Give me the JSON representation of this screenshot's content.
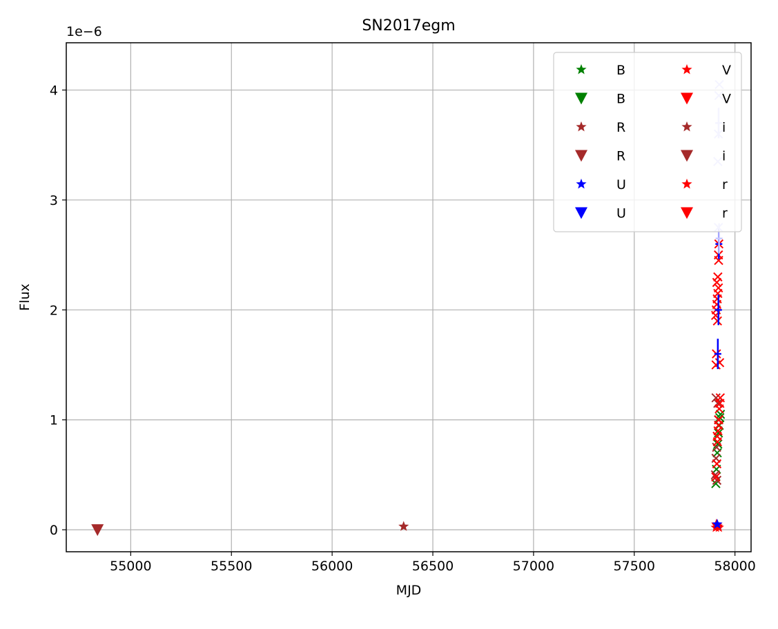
{
  "chart_data": {
    "type": "scatter",
    "title": "SN2017egm",
    "xlabel": "MJD",
    "ylabel": "Flux",
    "y_multiplier_label": "1e−6",
    "xlim": [
      54680,
      58080
    ],
    "ylim": [
      -0.2,
      4.43
    ],
    "x_ticks": [
      55000,
      55500,
      56000,
      56500,
      57000,
      57500,
      58000
    ],
    "y_ticks": [
      0,
      1,
      2,
      3,
      4
    ],
    "y_units": "1e-6",
    "grid": true,
    "legend_placement": "upper right",
    "legend": [
      {
        "label": "B",
        "marker": "star",
        "color": "#008000"
      },
      {
        "label": "B",
        "marker": "triangle_down",
        "color": "#008000"
      },
      {
        "label": "R",
        "marker": "star",
        "color": "#a52a2a"
      },
      {
        "label": "R",
        "marker": "triangle_down",
        "color": "#a52a2a"
      },
      {
        "label": "U",
        "marker": "star",
        "color": "#0000ff"
      },
      {
        "label": "U",
        "marker": "triangle_down",
        "color": "#0000ff"
      },
      {
        "label": "V",
        "marker": "star",
        "color": "#ff0000"
      },
      {
        "label": "V",
        "marker": "triangle_down",
        "color": "#ff0000"
      },
      {
        "label": "i",
        "marker": "star",
        "color": "#a52a2a"
      },
      {
        "label": "i",
        "marker": "triangle_down",
        "color": "#a52a2a"
      },
      {
        "label": "r",
        "marker": "star",
        "color": "#ff0000"
      },
      {
        "label": "r",
        "marker": "triangle_down",
        "color": "#ff0000"
      }
    ],
    "series": [
      {
        "marker": "triangle_down",
        "color": "#a52a2a",
        "points": [
          [
            54835,
            0.0
          ]
        ]
      },
      {
        "marker": "star",
        "color": "#a52a2a",
        "points": [
          [
            56355,
            0.03
          ]
        ]
      },
      {
        "marker": "star",
        "color": "#ff0000",
        "points": [
          [
            57905,
            0.02
          ],
          [
            57910,
            0.04
          ],
          [
            57915,
            0.03
          ],
          [
            57920,
            0.02
          ],
          [
            57908,
            0.05
          ]
        ]
      },
      {
        "marker": "star",
        "color": "#0000ff",
        "points": [
          [
            57912,
            0.05
          ]
        ]
      },
      {
        "marker": "x",
        "color": "#008000",
        "points": [
          [
            57905,
            0.42
          ],
          [
            57908,
            0.55
          ],
          [
            57912,
            0.7
          ],
          [
            57915,
            0.78
          ],
          [
            57918,
            0.88
          ],
          [
            57922,
            0.95
          ],
          [
            57925,
            1.02
          ],
          [
            57928,
            1.05
          ]
        ]
      },
      {
        "marker": "x",
        "color": "#a52a2a",
        "points": [
          [
            57903,
            0.5
          ],
          [
            57906,
            0.65
          ],
          [
            57909,
            0.75
          ],
          [
            57912,
            0.85
          ],
          [
            57906,
            1.2
          ],
          [
            57915,
            1.15
          ],
          [
            57918,
            1.0
          ],
          [
            57910,
            0.45
          ]
        ]
      },
      {
        "marker": "x",
        "color": "#ff0000",
        "points": [
          [
            57905,
            0.48
          ],
          [
            57910,
            0.6
          ],
          [
            57913,
            0.8
          ],
          [
            57916,
            0.9
          ],
          [
            57918,
            0.95
          ],
          [
            57920,
            1.0
          ],
          [
            57922,
            1.1
          ],
          [
            57925,
            1.15
          ],
          [
            57927,
            1.2
          ],
          [
            57912,
            0.85
          ],
          [
            57906,
            1.5
          ],
          [
            57908,
            1.6
          ],
          [
            57924,
            1.52
          ],
          [
            57904,
            1.95
          ],
          [
            57907,
            2.0
          ],
          [
            57910,
            2.05
          ],
          [
            57912,
            2.1
          ],
          [
            57915,
            2.15
          ],
          [
            57918,
            2.2
          ],
          [
            57910,
            2.25
          ],
          [
            57915,
            2.3
          ],
          [
            57918,
            2.5
          ],
          [
            57920,
            2.6
          ],
          [
            57913,
            1.9
          ],
          [
            57919,
            2.45
          ]
        ]
      },
      {
        "marker": "vline",
        "color": "#0000ff",
        "points": [
          [
            57915,
            1.6
          ],
          [
            57918,
            2.0
          ],
          [
            57920,
            2.6
          ]
        ]
      },
      {
        "marker": "x",
        "color": "#c8c8ff",
        "points": [
          [
            57915,
            3.35
          ],
          [
            57918,
            3.6
          ],
          [
            57920,
            3.95
          ],
          [
            57922,
            4.05
          ],
          [
            57918,
            2.75
          ]
        ]
      },
      {
        "marker": "vline",
        "color": "#c8c8ff",
        "points": [
          [
            57919,
            3.7
          ],
          [
            57921,
            2.65
          ]
        ]
      }
    ]
  }
}
